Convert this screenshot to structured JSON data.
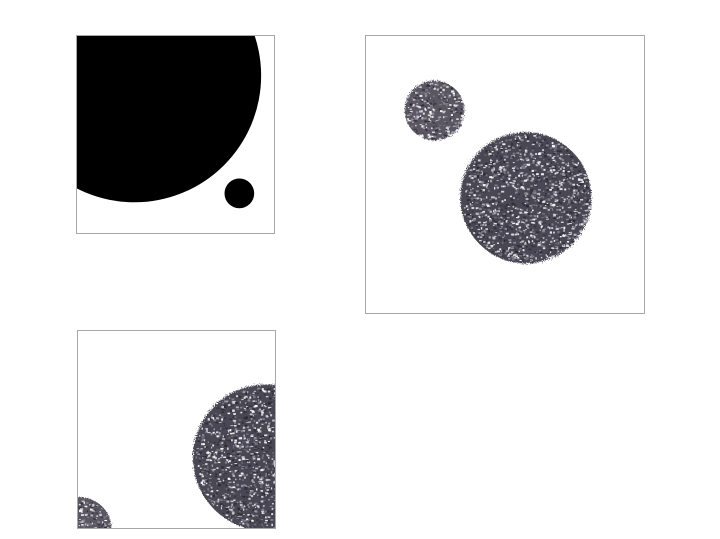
{
  "panels": [
    {
      "id": "solid-circles",
      "style": "solid",
      "fill_color": "#000000"
    },
    {
      "id": "textured-circles",
      "style": "stippled",
      "fill_color": "#3a3640"
    },
    {
      "id": "textured-circles-zoomed",
      "style": "stippled",
      "fill_color": "#3a3640"
    }
  ],
  "colors": {
    "background": "#ffffff",
    "border": "#a8a8a8",
    "ink": "#2b2733",
    "ink_light": "#8b8794"
  }
}
